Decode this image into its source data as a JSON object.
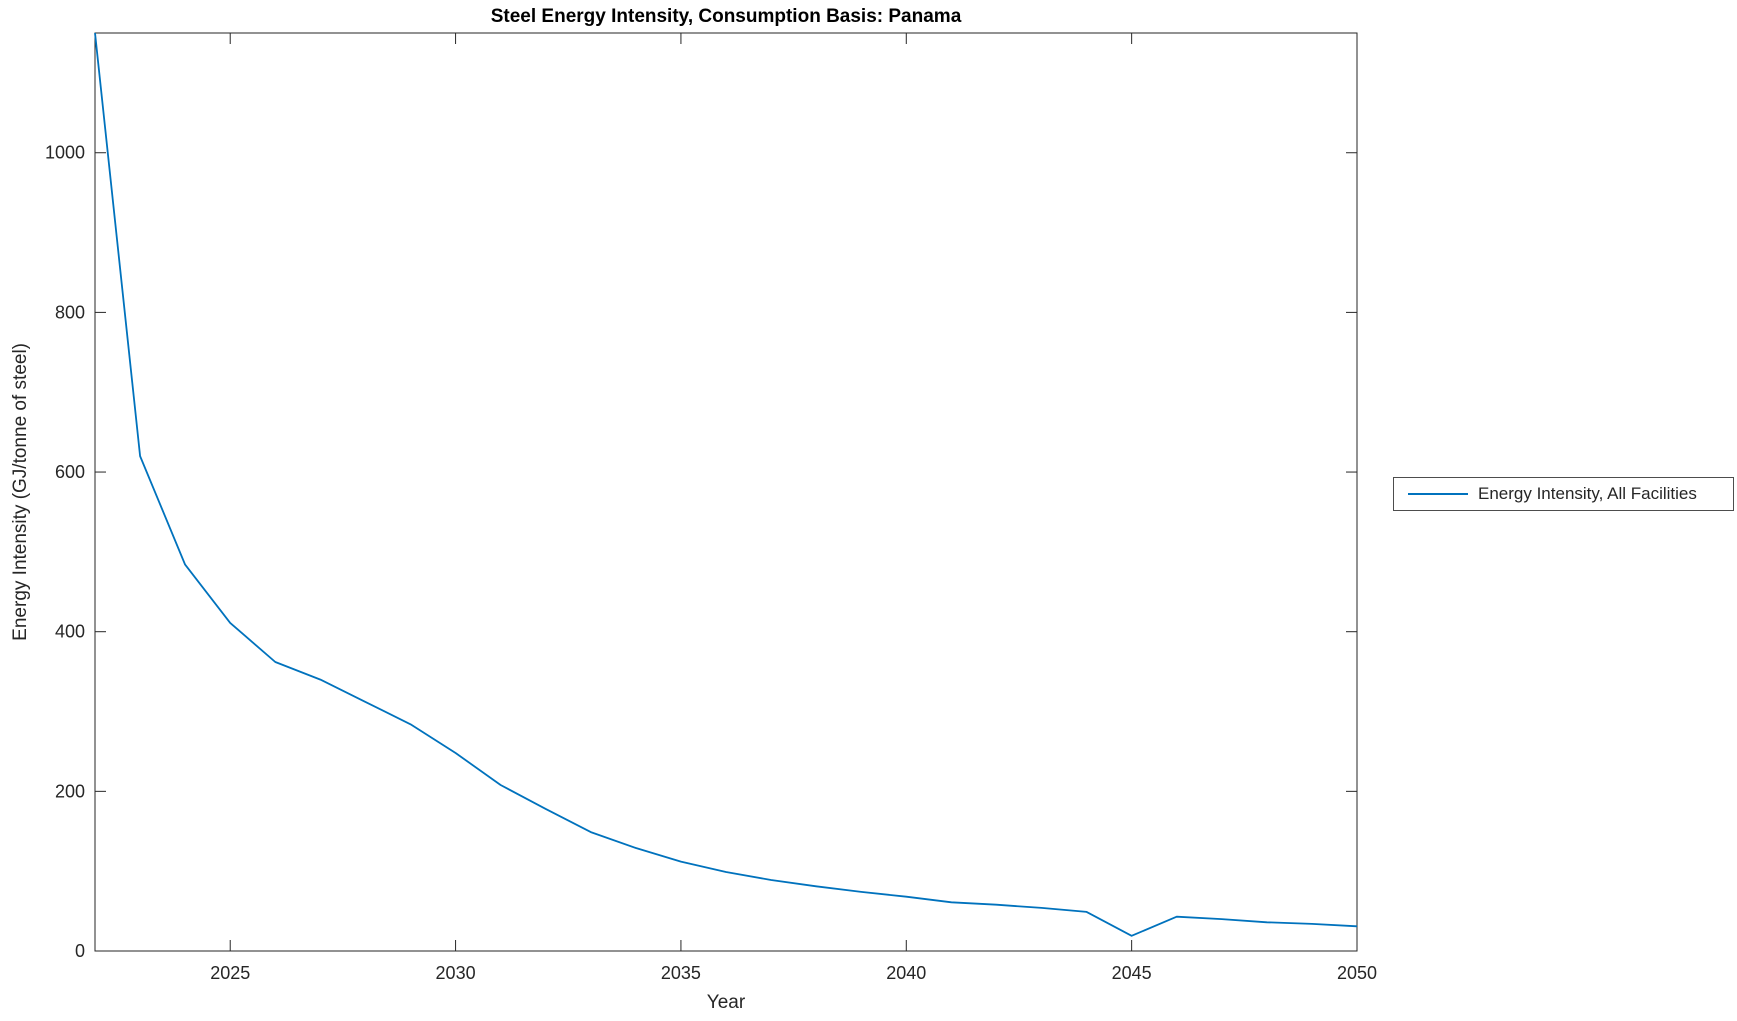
{
  "figure": {
    "title": "Steel Energy Intensity, Consumption Basis: Panama",
    "xlabel": "Year",
    "ylabel": "Energy Intensity (GJ/tonne of steel)",
    "background_color": "#ffffff"
  },
  "legend": {
    "entries": [
      {
        "label": "Energy Intensity, All Facilities",
        "color": "#0072BD"
      }
    ]
  },
  "chart_data": {
    "type": "line",
    "title": "Steel Energy Intensity, Consumption Basis: Panama",
    "xlabel": "Year",
    "ylabel": "Energy Intensity (GJ/tonne of steel)",
    "grid": false,
    "legend_position": "outside-right",
    "axis_color": "#262626",
    "tick_label_color": "#262626",
    "xlim": [
      2022,
      2050
    ],
    "ylim": [
      0,
      1150
    ],
    "xticks": [
      2025,
      2030,
      2035,
      2040,
      2045,
      2050
    ],
    "yticks": [
      0,
      200,
      400,
      600,
      800,
      1000
    ],
    "x": [
      2022,
      2023,
      2024,
      2025,
      2026,
      2027,
      2028,
      2029,
      2030,
      2031,
      2032,
      2033,
      2034,
      2035,
      2036,
      2037,
      2038,
      2039,
      2040,
      2041,
      2042,
      2043,
      2044,
      2045,
      2046,
      2047,
      2048,
      2049,
      2050
    ],
    "series": [
      {
        "name": "Energy Intensity, All Facilities",
        "color": "#0072BD",
        "values": [
          1150,
          620,
          484,
          411,
          362,
          340,
          312,
          284,
          248,
          208,
          178,
          149,
          129,
          112,
          99,
          89,
          81,
          74,
          68,
          61,
          58,
          54,
          49,
          19,
          43,
          40,
          36,
          34,
          31
        ]
      }
    ]
  }
}
